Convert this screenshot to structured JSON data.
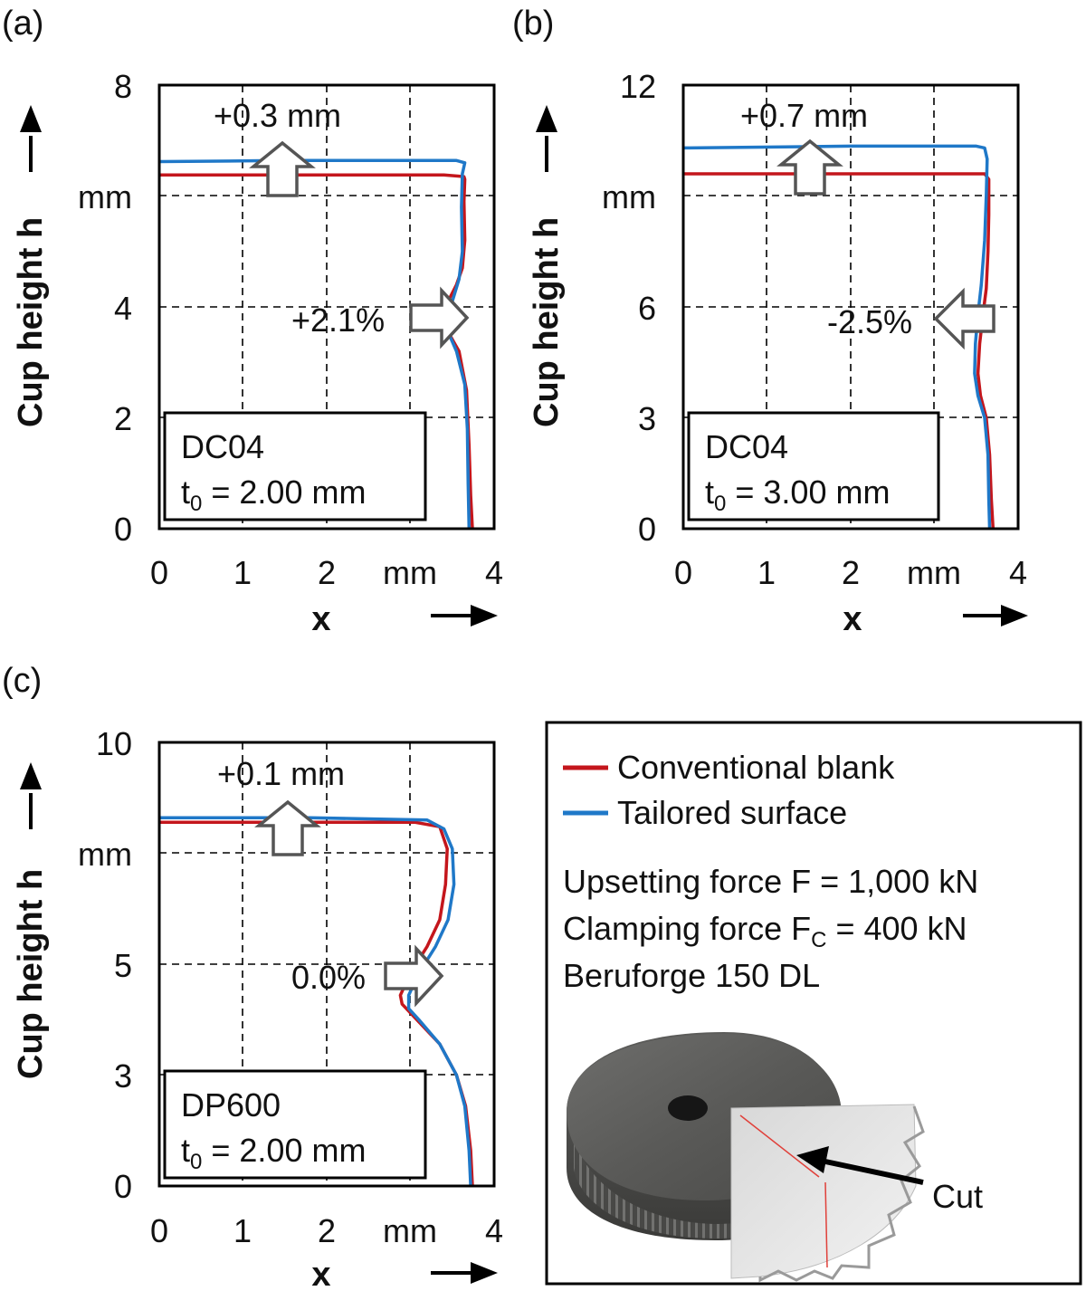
{
  "legend": {
    "items": [
      {
        "label": "Conventional blank",
        "color": "#c4161c"
      },
      {
        "label": "Tailored surface",
        "color": "#1f78c8"
      }
    ]
  },
  "process": {
    "line1": "Upsetting force F = 1,000 kN",
    "line2_a": "Clamping force F",
    "line2_sub": "C",
    "line2_b": " = 400 kN",
    "line3": "Beruforge 150 DL",
    "cut_label": "Cut"
  },
  "chart_data": [
    {
      "type": "line",
      "panel_label": "(a)",
      "xlabel": "x",
      "ylabel": "Cup height h",
      "x_unit": "mm",
      "y_unit": "mm",
      "xlim": [
        0,
        4
      ],
      "ylim": [
        0,
        8
      ],
      "xticks": [
        "0",
        "1",
        "2",
        "mm",
        "4"
      ],
      "yticks": [
        "0",
        "2",
        "4",
        "mm",
        "8"
      ],
      "material": "DC04",
      "t0_value": " = 2.00 mm",
      "annotations": {
        "height": "+0.3 mm",
        "thickness": "+2.1%"
      },
      "series": [
        {
          "name": "Conventional blank",
          "color": "#c4161c",
          "points": [
            [
              3.74,
              0
            ],
            [
              3.72,
              0.6
            ],
            [
              3.7,
              1.5
            ],
            [
              3.67,
              2.5
            ],
            [
              3.58,
              3.2
            ],
            [
              3.45,
              3.55
            ],
            [
              3.38,
              3.8
            ],
            [
              3.45,
              4.1
            ],
            [
              3.55,
              4.4
            ],
            [
              3.62,
              4.7
            ],
            [
              3.65,
              5.2
            ],
            [
              3.64,
              5.9
            ],
            [
              3.65,
              6.3
            ],
            [
              3.64,
              6.35
            ],
            [
              3.4,
              6.38
            ],
            [
              1.5,
              6.38
            ],
            [
              0,
              6.38
            ]
          ]
        },
        {
          "name": "Tailored surface",
          "color": "#1f78c8",
          "points": [
            [
              3.7,
              0
            ],
            [
              3.69,
              0.8
            ],
            [
              3.68,
              1.8
            ],
            [
              3.65,
              2.6
            ],
            [
              3.55,
              3.2
            ],
            [
              3.45,
              3.55
            ],
            [
              3.42,
              3.8
            ],
            [
              3.5,
              4.1
            ],
            [
              3.58,
              4.5
            ],
            [
              3.62,
              5.0
            ],
            [
              3.61,
              5.8
            ],
            [
              3.62,
              6.4
            ],
            [
              3.65,
              6.6
            ],
            [
              3.55,
              6.64
            ],
            [
              1.5,
              6.64
            ],
            [
              0,
              6.62
            ]
          ]
        }
      ]
    },
    {
      "type": "line",
      "panel_label": "(b)",
      "xlabel": "x",
      "ylabel": "Cup height h",
      "x_unit": "mm",
      "y_unit": "mm",
      "xlim": [
        0,
        4
      ],
      "ylim": [
        0,
        12
      ],
      "xticks": [
        "0",
        "1",
        "2",
        "mm",
        "4"
      ],
      "yticks": [
        "0",
        "3",
        "6",
        "mm",
        "12"
      ],
      "material": "DC04",
      "t0_value": " = 3.00 mm",
      "annotations": {
        "height": "+0.7 mm",
        "thickness": "-2.5%"
      },
      "series": [
        {
          "name": "Conventional blank",
          "color": "#c4161c",
          "points": [
            [
              3.7,
              0
            ],
            [
              3.68,
              0.8
            ],
            [
              3.66,
              2.0
            ],
            [
              3.62,
              3.0
            ],
            [
              3.55,
              3.6
            ],
            [
              3.52,
              4.2
            ],
            [
              3.54,
              5.0
            ],
            [
              3.58,
              5.8
            ],
            [
              3.62,
              6.5
            ],
            [
              3.64,
              7.5
            ],
            [
              3.65,
              8.5
            ],
            [
              3.65,
              9.45
            ],
            [
              3.6,
              9.6
            ],
            [
              2.0,
              9.6
            ],
            [
              0,
              9.6
            ]
          ]
        },
        {
          "name": "Tailored surface",
          "color": "#1f78c8",
          "points": [
            [
              3.66,
              0
            ],
            [
              3.65,
              0.8
            ],
            [
              3.64,
              2.0
            ],
            [
              3.6,
              3.0
            ],
            [
              3.52,
              3.6
            ],
            [
              3.48,
              4.2
            ],
            [
              3.49,
              5.0
            ],
            [
              3.52,
              5.8
            ],
            [
              3.56,
              6.6
            ],
            [
              3.6,
              7.8
            ],
            [
              3.62,
              9.0
            ],
            [
              3.63,
              10.0
            ],
            [
              3.6,
              10.3
            ],
            [
              3.5,
              10.35
            ],
            [
              2.0,
              10.35
            ],
            [
              0,
              10.3
            ]
          ]
        }
      ]
    },
    {
      "type": "line",
      "panel_label": "(c)",
      "xlabel": "x",
      "ylabel": "Cup height h",
      "x_unit": "mm",
      "y_unit": "mm",
      "xlim": [
        0,
        4
      ],
      "ylim": [
        0,
        10
      ],
      "xticks": [
        "0",
        "1",
        "2",
        "mm",
        "4"
      ],
      "yticks": [
        "0",
        "3",
        "5",
        "mm",
        "10"
      ],
      "material": "DP600",
      "t0_value": " = 2.00 mm",
      "annotations": {
        "height": "+0.1 mm",
        "thickness": "0.0%"
      },
      "series": [
        {
          "name": "Conventional blank",
          "color": "#c4161c",
          "points": [
            [
              3.74,
              0
            ],
            [
              3.72,
              0.8
            ],
            [
              3.66,
              1.8
            ],
            [
              3.55,
              2.5
            ],
            [
              3.35,
              3.2
            ],
            [
              3.1,
              3.7
            ],
            [
              2.9,
              4.1
            ],
            [
              2.88,
              4.3
            ],
            [
              3.0,
              4.8
            ],
            [
              3.2,
              5.4
            ],
            [
              3.35,
              6.0
            ],
            [
              3.42,
              6.8
            ],
            [
              3.44,
              7.6
            ],
            [
              3.35,
              8.1
            ],
            [
              3.05,
              8.2
            ],
            [
              1.8,
              8.2
            ],
            [
              0,
              8.2
            ]
          ]
        },
        {
          "name": "Tailored surface",
          "color": "#1f78c8",
          "points": [
            [
              3.72,
              0
            ],
            [
              3.7,
              0.8
            ],
            [
              3.65,
              1.8
            ],
            [
              3.55,
              2.5
            ],
            [
              3.35,
              3.2
            ],
            [
              3.1,
              3.75
            ],
            [
              2.98,
              4.0
            ],
            [
              2.98,
              4.3
            ],
            [
              3.1,
              4.8
            ],
            [
              3.3,
              5.4
            ],
            [
              3.45,
              6.0
            ],
            [
              3.52,
              6.8
            ],
            [
              3.5,
              7.6
            ],
            [
              3.4,
              8.05
            ],
            [
              3.2,
              8.25
            ],
            [
              1.8,
              8.3
            ],
            [
              0,
              8.3
            ]
          ]
        }
      ]
    }
  ]
}
